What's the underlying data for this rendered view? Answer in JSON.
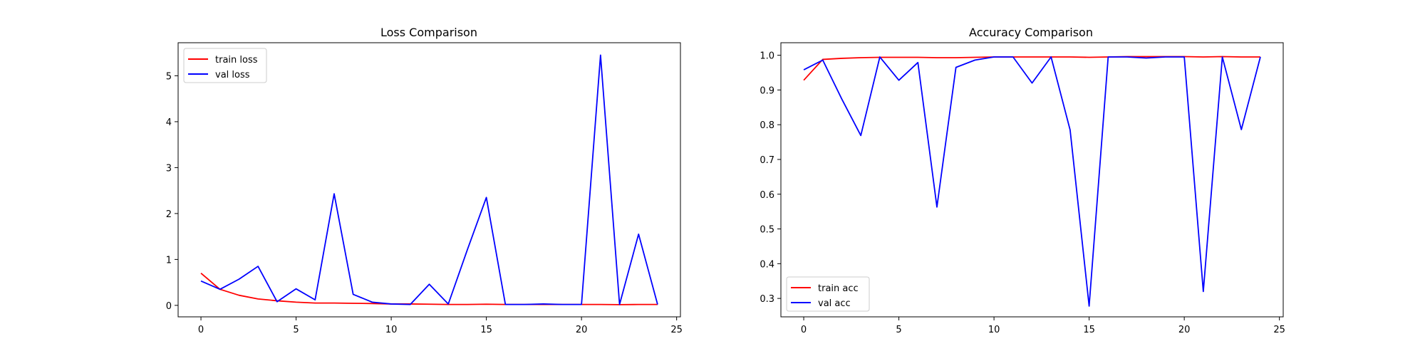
{
  "chart_data": [
    {
      "type": "line",
      "title": "Loss Comparison",
      "xlabel": "",
      "ylabel": "",
      "xlim": [
        -1.2,
        25.2
      ],
      "ylim": [
        -0.25,
        5.72
      ],
      "xticks": [
        0,
        5,
        10,
        15,
        20,
        25
      ],
      "yticks": [
        0,
        1,
        2,
        3,
        4,
        5
      ],
      "grid": false,
      "legend_position": "upper left",
      "x": [
        0,
        1,
        2,
        3,
        4,
        5,
        6,
        7,
        8,
        9,
        10,
        11,
        12,
        13,
        14,
        15,
        16,
        17,
        18,
        19,
        20,
        21,
        22,
        23,
        24
      ],
      "series": [
        {
          "name": "train loss",
          "color": "#ff0000",
          "values": [
            0.7,
            0.35,
            0.22,
            0.14,
            0.1,
            0.07,
            0.05,
            0.05,
            0.045,
            0.04,
            0.03,
            0.03,
            0.025,
            0.02,
            0.02,
            0.025,
            0.02,
            0.02,
            0.02,
            0.02,
            0.02,
            0.02,
            0.015,
            0.02,
            0.02
          ]
        },
        {
          "name": "val loss",
          "color": "#0000ff",
          "values": [
            0.53,
            0.35,
            0.57,
            0.85,
            0.08,
            0.36,
            0.12,
            2.43,
            0.24,
            0.07,
            0.03,
            0.02,
            0.46,
            0.03,
            1.21,
            2.35,
            0.02,
            0.02,
            0.03,
            0.02,
            0.02,
            5.45,
            0.02,
            1.55,
            0.02
          ]
        }
      ]
    },
    {
      "type": "line",
      "title": "Accuracy Comparison",
      "xlabel": "",
      "ylabel": "",
      "xlim": [
        -1.2,
        25.2
      ],
      "ylim": [
        0.247,
        1.036
      ],
      "xticks": [
        0,
        5,
        10,
        15,
        20,
        25
      ],
      "yticks": [
        0.3,
        0.4,
        0.5,
        0.6,
        0.7,
        0.8,
        0.9,
        1.0
      ],
      "ytick_labels": [
        "0.3",
        "0.4",
        "0.5",
        "0.6",
        "0.7",
        "0.8",
        "0.9",
        "1.0"
      ],
      "grid": false,
      "legend_position": "lower left",
      "x": [
        0,
        1,
        2,
        3,
        4,
        5,
        6,
        7,
        8,
        9,
        10,
        11,
        12,
        13,
        14,
        15,
        16,
        17,
        18,
        19,
        20,
        21,
        22,
        23,
        24
      ],
      "series": [
        {
          "name": "train acc",
          "color": "#ff0000",
          "values": [
            0.928,
            0.988,
            0.991,
            0.993,
            0.994,
            0.994,
            0.994,
            0.993,
            0.993,
            0.994,
            0.995,
            0.995,
            0.995,
            0.995,
            0.995,
            0.994,
            0.995,
            0.996,
            0.996,
            0.996,
            0.996,
            0.995,
            0.996,
            0.995,
            0.995
          ]
        },
        {
          "name": "val acc",
          "color": "#0000ff",
          "values": [
            0.958,
            0.986,
            0.874,
            0.769,
            0.995,
            0.928,
            0.979,
            0.563,
            0.965,
            0.986,
            0.995,
            0.995,
            0.92,
            0.995,
            0.785,
            0.278,
            0.995,
            0.995,
            0.992,
            0.995,
            0.995,
            0.32,
            0.995,
            0.786,
            0.995
          ]
        }
      ]
    }
  ]
}
